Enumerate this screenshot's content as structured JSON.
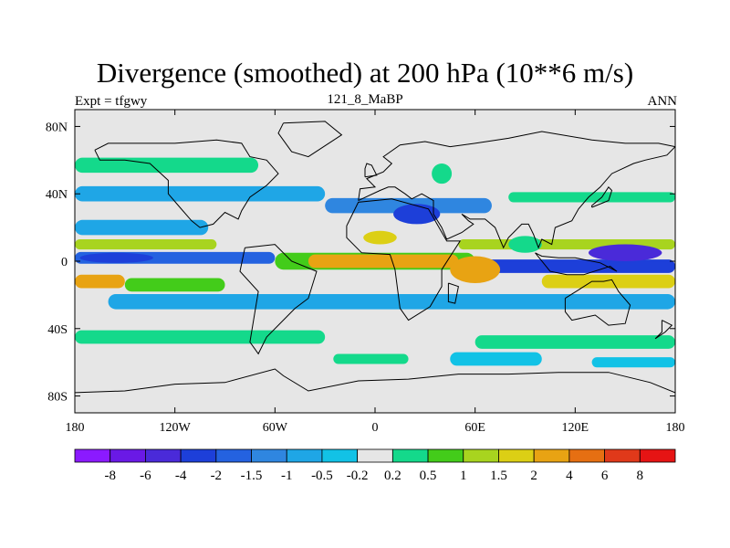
{
  "chart_data": {
    "type": "heatmap",
    "title": "Divergence (smoothed) at 200 hPa (10**6 m/s)",
    "left_string": "Expt = tfgwy",
    "center_string": "121_8_MaBP",
    "right_string": "ANN",
    "x_ticks": [
      "180",
      "120W",
      "60W",
      "0",
      "60E",
      "120E",
      "180"
    ],
    "y_ticks": [
      "80N",
      "40N",
      "0",
      "40S",
      "80S"
    ],
    "x_tick_values": [
      -180,
      -120,
      -60,
      0,
      60,
      120,
      180
    ],
    "y_tick_values": [
      80,
      40,
      0,
      -40,
      -80
    ],
    "xlim": [
      -180,
      180
    ],
    "ylim": [
      -90,
      90
    ],
    "colorbar": {
      "labels": [
        "-8",
        "-6",
        "-4",
        "-2",
        "-1.5",
        "-1",
        "-0.5",
        "-0.2",
        "0.2",
        "0.5",
        "1",
        "1.5",
        "2",
        "4",
        "6",
        "8"
      ],
      "colors": [
        "#8b1aff",
        "#6a19e6",
        "#4a2ad9",
        "#1d3fd9",
        "#2462e0",
        "#2f86e0",
        "#1fa6e6",
        "#12c2e6",
        "#e6e6e6",
        "#14d98b",
        "#43cc1a",
        "#a8d41f",
        "#dccf15",
        "#e8a313",
        "#e66f12",
        "#e0391a",
        "#e61414"
      ]
    },
    "bands": [
      {
        "lat": 57,
        "width": 9,
        "level": 9,
        "lon_start": -180,
        "lon_end": -70
      },
      {
        "lat": 40,
        "width": 9,
        "level": 6,
        "lon_start": -180,
        "lon_end": -30
      },
      {
        "lat": 33,
        "width": 9,
        "level": 5,
        "lon_start": -30,
        "lon_end": 70
      },
      {
        "lat": 38,
        "width": 6,
        "level": 9,
        "lon_start": 80,
        "lon_end": 180
      },
      {
        "lat": 20,
        "width": 9,
        "level": 6,
        "lon_start": -180,
        "lon_end": -100
      },
      {
        "lat": 10,
        "width": 6,
        "level": 11,
        "lon_start": -180,
        "lon_end": -95
      },
      {
        "lat": 10,
        "width": 6,
        "level": 11,
        "lon_start": 50,
        "lon_end": 180
      },
      {
        "lat": 2,
        "width": 7,
        "level": 4,
        "lon_start": -180,
        "lon_end": -60
      },
      {
        "lat": 0,
        "width": 10,
        "level": 10,
        "lon_start": -60,
        "lon_end": 60
      },
      {
        "lat": 0,
        "width": 8,
        "level": 13,
        "lon_start": -40,
        "lon_end": 50
      },
      {
        "lat": -3,
        "width": 8,
        "level": 3,
        "lon_start": 60,
        "lon_end": 180
      },
      {
        "lat": -12,
        "width": 8,
        "level": 13,
        "lon_start": -180,
        "lon_end": -150
      },
      {
        "lat": -14,
        "width": 8,
        "level": 10,
        "lon_start": -150,
        "lon_end": -90
      },
      {
        "lat": -12,
        "width": 8,
        "level": 12,
        "lon_start": 100,
        "lon_end": 180
      },
      {
        "lat": -24,
        "width": 9,
        "level": 6,
        "lon_start": -160,
        "lon_end": 180
      },
      {
        "lat": -45,
        "width": 8,
        "level": 9,
        "lon_start": -180,
        "lon_end": -30
      },
      {
        "lat": -48,
        "width": 8,
        "level": 9,
        "lon_start": 60,
        "lon_end": 180
      },
      {
        "lat": -58,
        "width": 8,
        "level": 7,
        "lon_start": 45,
        "lon_end": 100
      },
      {
        "lat": -60,
        "width": 6,
        "level": 7,
        "lon_start": 130,
        "lon_end": 180
      },
      {
        "lat": -58,
        "width": 6,
        "level": 9,
        "lon_start": -25,
        "lon_end": 20
      }
    ],
    "blobs": [
      {
        "lon": 25,
        "lat": 28,
        "rx": 14,
        "ry": 6,
        "level": 3
      },
      {
        "lon": 40,
        "lat": 52,
        "rx": 6,
        "ry": 6,
        "level": 9
      },
      {
        "lon": 150,
        "lat": 5,
        "rx": 22,
        "ry": 5,
        "level": 2
      },
      {
        "lon": 3,
        "lat": 14,
        "rx": 10,
        "ry": 4,
        "level": 12
      },
      {
        "lon": 60,
        "lat": -5,
        "rx": 15,
        "ry": 8,
        "level": 13
      },
      {
        "lon": 90,
        "lat": 10,
        "rx": 10,
        "ry": 5,
        "level": 9
      },
      {
        "lon": -155,
        "lat": 2,
        "rx": 22,
        "ry": 3,
        "level": 3
      }
    ],
    "coastlines": [
      {
        "name": "north-america",
        "points": [
          [
            -168,
            66
          ],
          [
            -160,
            70
          ],
          [
            -140,
            70
          ],
          [
            -120,
            70
          ],
          [
            -95,
            72
          ],
          [
            -80,
            70
          ],
          [
            -75,
            62
          ],
          [
            -65,
            60
          ],
          [
            -58,
            52
          ],
          [
            -65,
            45
          ],
          [
            -75,
            38
          ],
          [
            -80,
            30
          ],
          [
            -82,
            25
          ],
          [
            -90,
            29
          ],
          [
            -97,
            22
          ],
          [
            -105,
            20
          ],
          [
            -110,
            24
          ],
          [
            -117,
            32
          ],
          [
            -124,
            40
          ],
          [
            -124,
            48
          ],
          [
            -135,
            58
          ],
          [
            -150,
            60
          ],
          [
            -165,
            60
          ],
          [
            -168,
            66
          ]
        ]
      },
      {
        "name": "greenland",
        "points": [
          [
            -55,
            82
          ],
          [
            -30,
            83
          ],
          [
            -20,
            75
          ],
          [
            -40,
            62
          ],
          [
            -50,
            65
          ],
          [
            -58,
            76
          ],
          [
            -55,
            82
          ]
        ]
      },
      {
        "name": "south-america",
        "points": [
          [
            -78,
            8
          ],
          [
            -60,
            10
          ],
          [
            -50,
            0
          ],
          [
            -35,
            -6
          ],
          [
            -40,
            -22
          ],
          [
            -48,
            -28
          ],
          [
            -58,
            -38
          ],
          [
            -65,
            -45
          ],
          [
            -70,
            -55
          ],
          [
            -75,
            -48
          ],
          [
            -72,
            -30
          ],
          [
            -70,
            -18
          ],
          [
            -81,
            -6
          ],
          [
            -78,
            8
          ]
        ]
      },
      {
        "name": "africa",
        "points": [
          [
            -17,
            21
          ],
          [
            -10,
            35
          ],
          [
            10,
            37
          ],
          [
            32,
            31
          ],
          [
            43,
            12
          ],
          [
            51,
            12
          ],
          [
            40,
            -5
          ],
          [
            40,
            -15
          ],
          [
            33,
            -27
          ],
          [
            20,
            -35
          ],
          [
            15,
            -28
          ],
          [
            12,
            -5
          ],
          [
            9,
            4
          ],
          [
            -8,
            5
          ],
          [
            -17,
            14
          ],
          [
            -17,
            21
          ]
        ]
      },
      {
        "name": "eurasia",
        "points": [
          [
            -10,
            36
          ],
          [
            -9,
            43
          ],
          [
            0,
            44
          ],
          [
            -5,
            49
          ],
          [
            5,
            53
          ],
          [
            10,
            58
          ],
          [
            5,
            62
          ],
          [
            15,
            69
          ],
          [
            30,
            71
          ],
          [
            45,
            68
          ],
          [
            60,
            70
          ],
          [
            80,
            73
          ],
          [
            100,
            77
          ],
          [
            130,
            72
          ],
          [
            150,
            70
          ],
          [
            170,
            70
          ],
          [
            180,
            68
          ],
          [
            175,
            63
          ],
          [
            162,
            60
          ],
          [
            155,
            58
          ],
          [
            142,
            52
          ],
          [
            135,
            44
          ],
          [
            128,
            38
          ],
          [
            122,
            31
          ],
          [
            118,
            24
          ],
          [
            108,
            20
          ],
          [
            106,
            10
          ],
          [
            100,
            13
          ],
          [
            98,
            8
          ],
          [
            95,
            16
          ],
          [
            92,
            22
          ],
          [
            88,
            22
          ],
          [
            80,
            14
          ],
          [
            77,
            8
          ],
          [
            72,
            20
          ],
          [
            66,
            25
          ],
          [
            57,
            25
          ],
          [
            52,
            28
          ],
          [
            56,
            24
          ],
          [
            59,
            22
          ],
          [
            52,
            17
          ],
          [
            43,
            13
          ],
          [
            40,
            20
          ],
          [
            35,
            28
          ],
          [
            35,
            36
          ],
          [
            28,
            40
          ],
          [
            22,
            37
          ],
          [
            18,
            40
          ],
          [
            12,
            44
          ],
          [
            8,
            44
          ],
          [
            3,
            42
          ],
          [
            -10,
            36
          ]
        ]
      },
      {
        "name": "australia",
        "points": [
          [
            114,
            -22
          ],
          [
            122,
            -17
          ],
          [
            130,
            -12
          ],
          [
            137,
            -12
          ],
          [
            142,
            -11
          ],
          [
            146,
            -18
          ],
          [
            153,
            -26
          ],
          [
            150,
            -37
          ],
          [
            140,
            -38
          ],
          [
            132,
            -32
          ],
          [
            118,
            -35
          ],
          [
            114,
            -30
          ],
          [
            114,
            -22
          ]
        ]
      },
      {
        "name": "antarctica",
        "points": [
          [
            -180,
            -78
          ],
          [
            -150,
            -77
          ],
          [
            -120,
            -73
          ],
          [
            -90,
            -72
          ],
          [
            -60,
            -64
          ],
          [
            -55,
            -68
          ],
          [
            -40,
            -77
          ],
          [
            -10,
            -71
          ],
          [
            20,
            -70
          ],
          [
            50,
            -67
          ],
          [
            80,
            -67
          ],
          [
            110,
            -66
          ],
          [
            140,
            -66
          ],
          [
            165,
            -72
          ],
          [
            180,
            -78
          ]
        ]
      },
      {
        "name": "madagascar",
        "points": [
          [
            44,
            -13
          ],
          [
            50,
            -15
          ],
          [
            48,
            -25
          ],
          [
            44,
            -24
          ],
          [
            44,
            -13
          ]
        ]
      },
      {
        "name": "japan",
        "points": [
          [
            130,
            32
          ],
          [
            140,
            36
          ],
          [
            142,
            42
          ],
          [
            140,
            44
          ],
          [
            136,
            38
          ],
          [
            130,
            33
          ],
          [
            130,
            32
          ]
        ]
      },
      {
        "name": "british-isles",
        "points": [
          [
            -6,
            50
          ],
          [
            1,
            51
          ],
          [
            -2,
            57
          ],
          [
            -5,
            58
          ],
          [
            -6,
            55
          ],
          [
            -6,
            50
          ]
        ]
      },
      {
        "name": "new-guinea-indonesia",
        "points": [
          [
            96,
            5
          ],
          [
            105,
            -6
          ],
          [
            115,
            -8
          ],
          [
            125,
            -8
          ],
          [
            141,
            -3
          ],
          [
            145,
            -6
          ],
          [
            135,
            -1
          ],
          [
            120,
            2
          ],
          [
            110,
            2
          ],
          [
            100,
            3
          ],
          [
            96,
            5
          ]
        ]
      },
      {
        "name": "new-zealand",
        "points": [
          [
            172,
            -35
          ],
          [
            178,
            -38
          ],
          [
            174,
            -42
          ],
          [
            168,
            -46
          ],
          [
            172,
            -42
          ],
          [
            172,
            -35
          ]
        ]
      }
    ]
  }
}
